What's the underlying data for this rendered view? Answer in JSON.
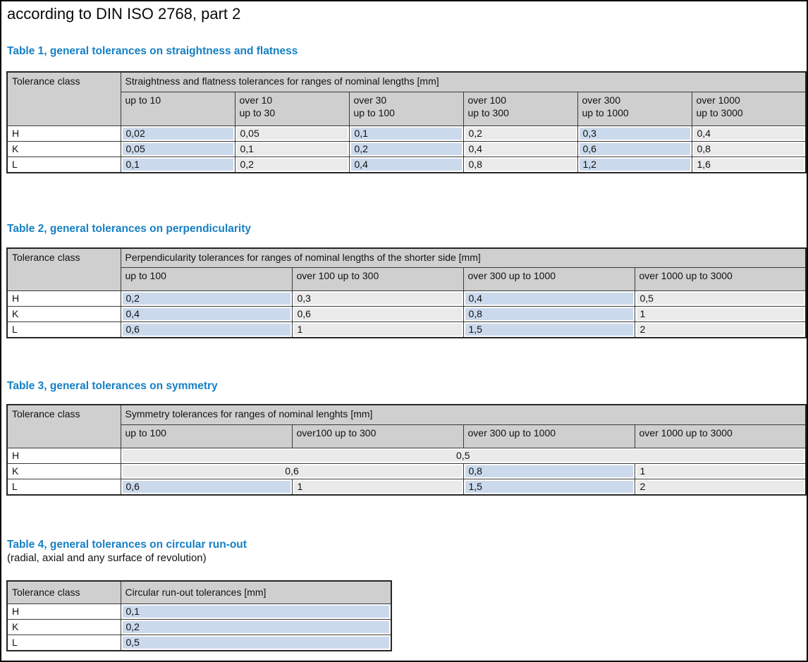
{
  "page_title": "according to DIN ISO 2768, part 2",
  "colors": {
    "heading_blue": "#1580c4",
    "header_gray": "#cfcfcf",
    "cell_blue": "#cbd9ec",
    "cell_gray": "#eaeaea",
    "table_border": "#3a3a3a",
    "page_border": "#000000",
    "text": "#111111"
  },
  "tables": [
    {
      "heading": "Table 1, general tolerances on straightness and flatness",
      "tolerance_class_label": "Tolerance class",
      "span_header": "Straightness and flatness tolerances for ranges of nominal lengths [mm]",
      "columns": [
        {
          "lines": [
            "up to 10"
          ]
        },
        {
          "lines": [
            "over 10",
            "up to 30"
          ]
        },
        {
          "lines": [
            "over 30",
            "up to 100"
          ]
        },
        {
          "lines": [
            "over 100",
            "up to 300"
          ]
        },
        {
          "lines": [
            "over 300",
            "up to 1000"
          ]
        },
        {
          "lines": [
            "over 1000",
            "up to 3000"
          ]
        }
      ],
      "rows": [
        {
          "label": "H",
          "cells": [
            {
              "v": "0,02",
              "bg": "blue"
            },
            {
              "v": "0,05",
              "bg": "gray"
            },
            {
              "v": "0,1",
              "bg": "blue"
            },
            {
              "v": "0,2",
              "bg": "gray"
            },
            {
              "v": "0,3",
              "bg": "blue"
            },
            {
              "v": "0,4",
              "bg": "gray"
            }
          ]
        },
        {
          "label": "K",
          "cells": [
            {
              "v": "0,05",
              "bg": "blue"
            },
            {
              "v": "0,1",
              "bg": "gray"
            },
            {
              "v": "0,2",
              "bg": "blue"
            },
            {
              "v": "0,4",
              "bg": "gray"
            },
            {
              "v": "0,6",
              "bg": "blue"
            },
            {
              "v": "0,8",
              "bg": "gray"
            }
          ]
        },
        {
          "label": "L",
          "cells": [
            {
              "v": "0,1",
              "bg": "blue"
            },
            {
              "v": "0,2",
              "bg": "gray"
            },
            {
              "v": "0,4",
              "bg": "blue"
            },
            {
              "v": "0,8",
              "bg": "gray"
            },
            {
              "v": "1,2",
              "bg": "blue"
            },
            {
              "v": "1,6",
              "bg": "gray"
            }
          ]
        }
      ]
    },
    {
      "heading": "Table 2, general tolerances on perpendicularity",
      "tolerance_class_label": "Tolerance class",
      "span_header": "Perpendicularity tolerances for ranges of nominal lengths of the shorter side [mm]",
      "columns": [
        {
          "lines": [
            "up to 100"
          ]
        },
        {
          "lines": [
            "over 100 up to 300"
          ]
        },
        {
          "lines": [
            "over 300 up to 1000"
          ]
        },
        {
          "lines": [
            "over 1000 up to 3000"
          ]
        }
      ],
      "rows": [
        {
          "label": "H",
          "cells": [
            {
              "v": "0,2",
              "bg": "blue"
            },
            {
              "v": "0,3",
              "bg": "gray"
            },
            {
              "v": "0,4",
              "bg": "blue"
            },
            {
              "v": "0,5",
              "bg": "gray"
            }
          ]
        },
        {
          "label": "K",
          "cells": [
            {
              "v": "0,4",
              "bg": "blue"
            },
            {
              "v": "0,6",
              "bg": "gray"
            },
            {
              "v": "0,8",
              "bg": "blue"
            },
            {
              "v": "1",
              "bg": "gray"
            }
          ]
        },
        {
          "label": "L",
          "cells": [
            {
              "v": "0,6",
              "bg": "blue"
            },
            {
              "v": "1",
              "bg": "gray"
            },
            {
              "v": "1,5",
              "bg": "blue"
            },
            {
              "v": "2",
              "bg": "gray"
            }
          ]
        }
      ]
    },
    {
      "heading": "Table 3, general tolerances on symmetry",
      "tolerance_class_label": "Tolerance class",
      "span_header": "Symmetry tolerances for ranges of nominal lenghts [mm]",
      "columns": [
        {
          "lines": [
            "up to 100"
          ]
        },
        {
          "lines": [
            "over100 up to 300"
          ]
        },
        {
          "lines": [
            "over 300 up to 1000"
          ]
        },
        {
          "lines": [
            "over 1000 up to 3000"
          ]
        }
      ],
      "rows": [
        {
          "label": "H",
          "cells": [
            {
              "v": "0,5",
              "bg": "gray",
              "span": 4
            }
          ]
        },
        {
          "label": "K",
          "cells": [
            {
              "v": "0,6",
              "bg": "gray",
              "span": 2
            },
            {
              "v": "0,8",
              "bg": "blue"
            },
            {
              "v": "1",
              "bg": "gray"
            }
          ]
        },
        {
          "label": "L",
          "cells": [
            {
              "v": "0,6",
              "bg": "blue"
            },
            {
              "v": "1",
              "bg": "gray"
            },
            {
              "v": "1,5",
              "bg": "blue"
            },
            {
              "v": "2",
              "bg": "gray"
            }
          ]
        }
      ]
    },
    {
      "heading": "Table 4, general tolerances on circular run-out",
      "subtitle": "(radial, axial and any surface of revolution)",
      "tolerance_class_label": "Tolerance class",
      "span_header": "Circular run-out tolerances [mm]",
      "columns": [],
      "rows": [
        {
          "label": "H",
          "cells": [
            {
              "v": "0,1",
              "bg": "blue"
            }
          ]
        },
        {
          "label": "K",
          "cells": [
            {
              "v": "0,2",
              "bg": "blue"
            }
          ]
        },
        {
          "label": "L",
          "cells": [
            {
              "v": "0,5",
              "bg": "blue"
            }
          ]
        }
      ]
    }
  ]
}
